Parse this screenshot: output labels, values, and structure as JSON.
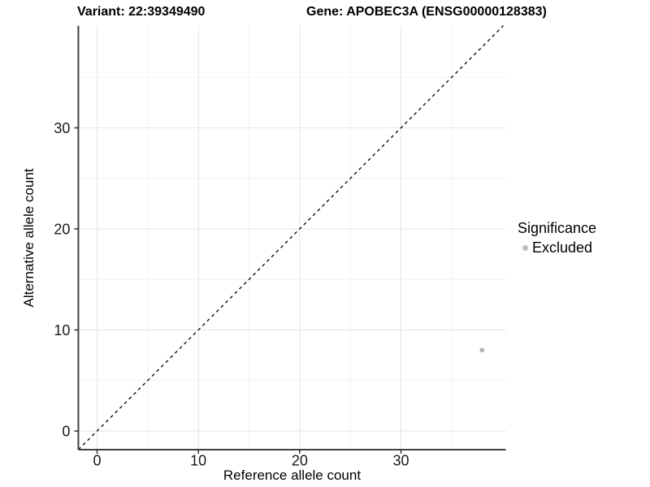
{
  "chart_data": {
    "type": "scatter",
    "title_parts": [
      "Variant: 22:39349490",
      "Gene: APOBEC3A (ENSG00000128383)"
    ],
    "xlabel": "Reference allele count",
    "ylabel": "Alternative allele count",
    "xlim": [
      -1.85,
      40.35
    ],
    "ylim": [
      -1.85,
      40.1
    ],
    "x_ticks": [
      0,
      10,
      20,
      30
    ],
    "y_ticks": [
      0,
      10,
      20,
      30
    ],
    "x_minor_ticks": [
      5,
      15,
      25,
      35
    ],
    "y_minor_ticks": [
      5,
      15,
      25,
      35
    ],
    "grid": "major+minor",
    "identity_line": {
      "slope": 1,
      "intercept": 0,
      "style": "dashed",
      "color": "#000000"
    },
    "points": [
      {
        "x": 38,
        "y": 8,
        "series": "Excluded",
        "color": "#b4b4b4",
        "radius": 2.8
      }
    ],
    "legend": {
      "position": "right",
      "title": "Significance",
      "entries": [
        {
          "label": "Excluded",
          "color": "#bebebe"
        }
      ]
    },
    "colors": {
      "axis_line": "#404040",
      "tick_mark": "#333333",
      "grid_major": "#e4e4e4",
      "grid_minor": "#f2f2f2",
      "tick_text": "#1a1a1a"
    }
  }
}
